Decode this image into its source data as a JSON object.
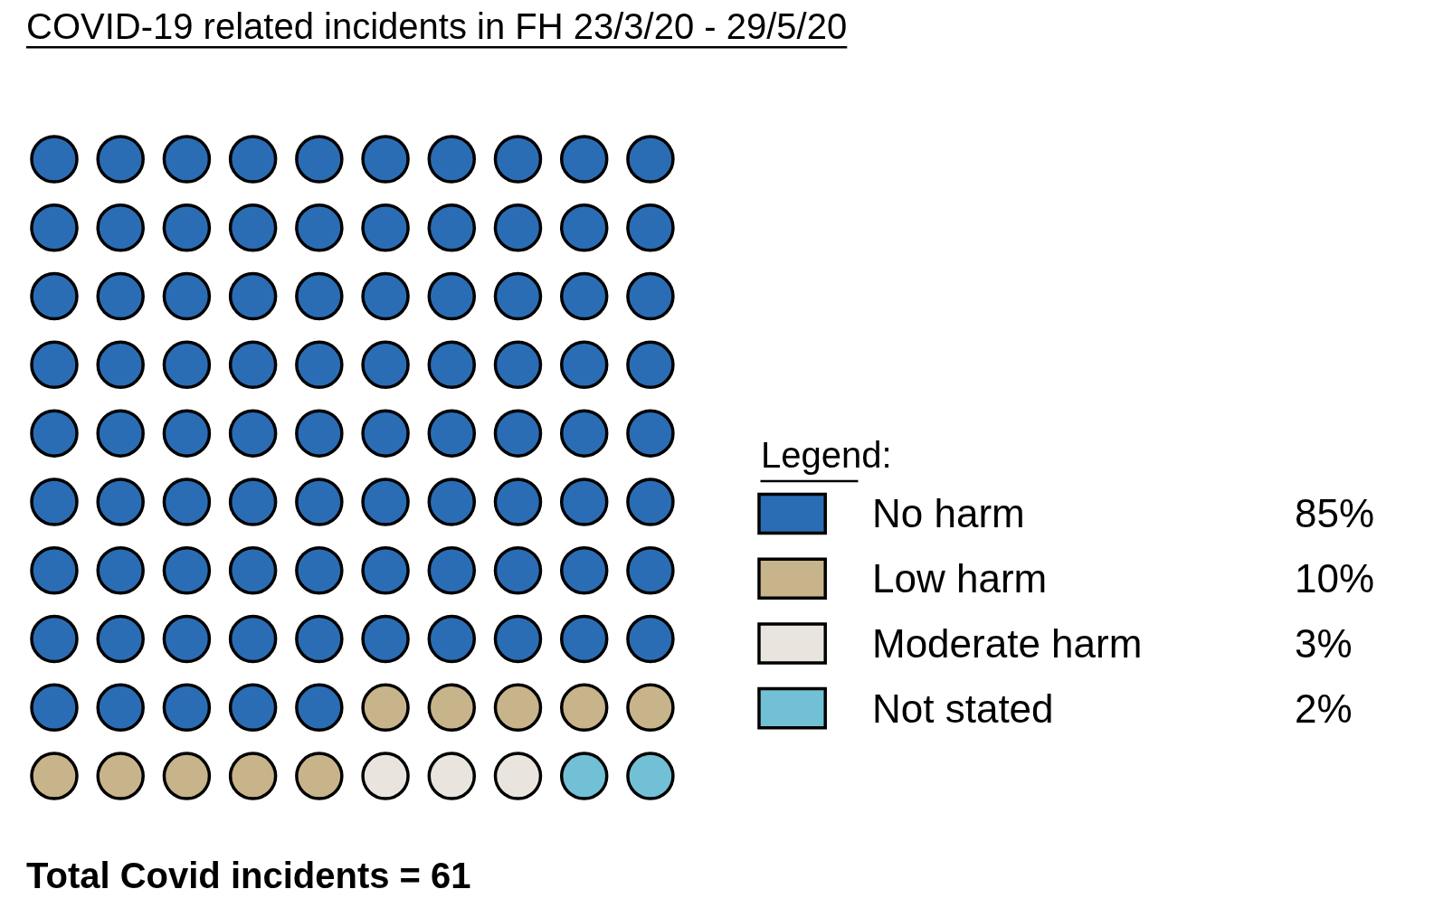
{
  "chart_data": {
    "type": "other",
    "title": "COVID-19 related incidents in FH 23/3/20 - 29/5/20",
    "legend_title": "Legend:",
    "categories": [
      "No harm",
      "Low harm",
      "Moderate harm",
      "Not stated"
    ],
    "values": [
      85,
      10,
      3,
      2
    ],
    "value_labels": [
      "85%",
      "10%",
      "3%",
      "2%"
    ],
    "colors": [
      "#2a6db5",
      "#c8b48a",
      "#e9e5de",
      "#72c0d6"
    ],
    "annotations": [
      "Total Covid incidents = 61"
    ]
  }
}
